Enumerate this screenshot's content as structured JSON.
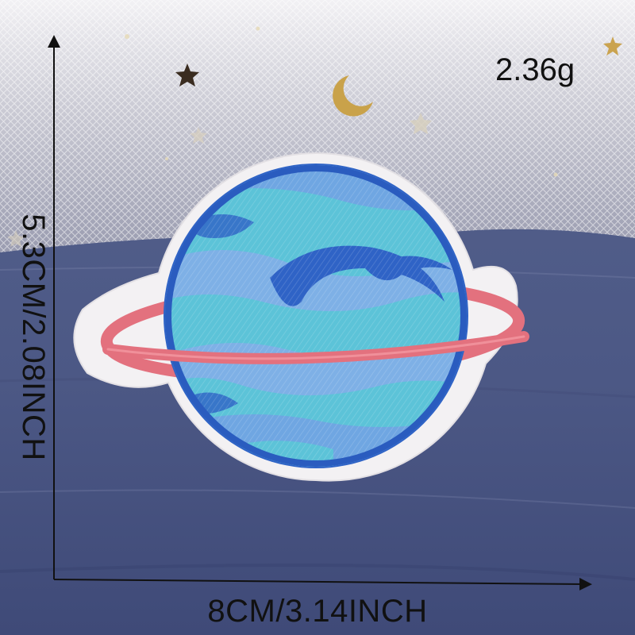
{
  "measurements": {
    "weight": "2.36g",
    "width": "8CM/3.14INCH",
    "height": "5.3CM/2.08INCH"
  },
  "photo": {
    "subject": "planet-patch-icon",
    "colors": {
      "denim": "#4e5a86",
      "tulle": "#ebeaee",
      "felt": "#f4f2f4",
      "ring": "#e86f7c",
      "outline": "#2e62c6",
      "light_blue": "#7eb0e6",
      "aqua": "#5cc3d8"
    }
  }
}
